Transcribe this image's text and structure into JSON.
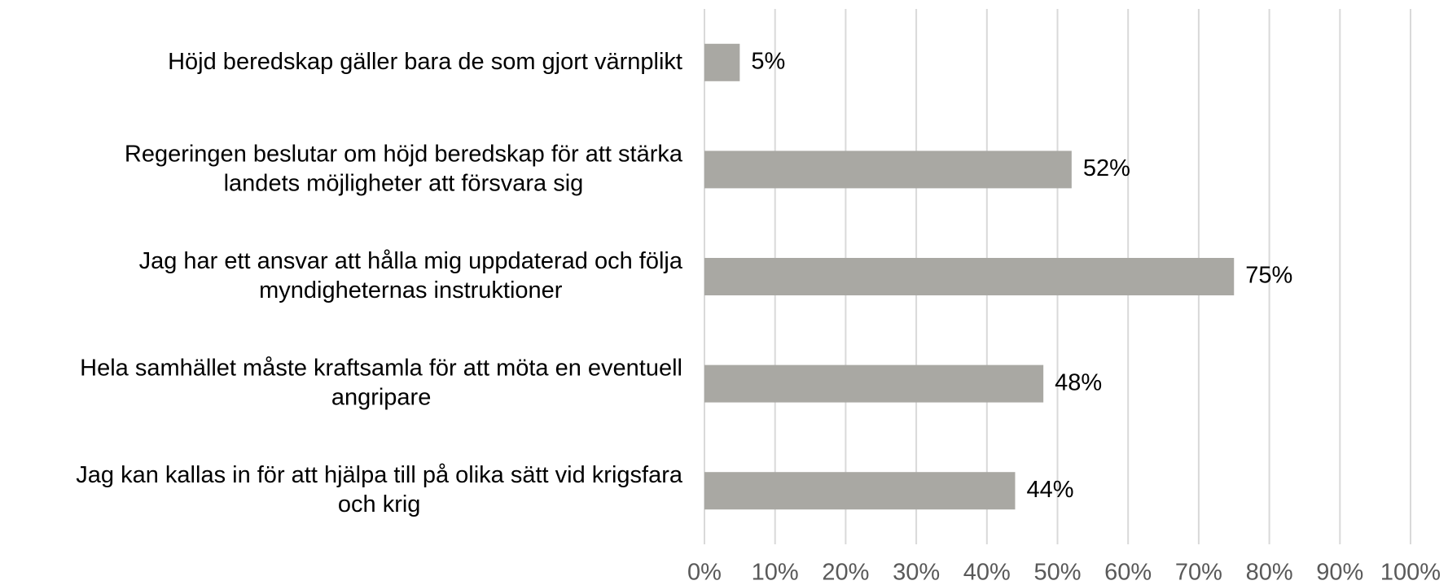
{
  "chart_data": {
    "type": "bar",
    "orientation": "horizontal",
    "categories": [
      [
        "Höjd beredskap gäller bara de som gjort värnplikt"
      ],
      [
        "Regeringen beslutar om höjd beredskap för att stärka",
        "landets möjligheter att försvara sig"
      ],
      [
        "Jag har ett ansvar att hålla mig uppdaterad och följa",
        "myndigheternas instruktioner"
      ],
      [
        "Hela samhället måste kraftsamla för att möta en eventuell",
        "angripare"
      ],
      [
        "Jag kan kallas in för att hjälpa till på olika sätt vid krigsfara",
        "och krig"
      ]
    ],
    "values": [
      5,
      52,
      75,
      48,
      44
    ],
    "value_labels": [
      "5%",
      "52%",
      "75%",
      "48%",
      "44%"
    ],
    "color": "#a9a8a3",
    "xlim": [
      0,
      100
    ],
    "xticks": [
      {
        "value": 0,
        "label": "0%"
      },
      {
        "value": 10,
        "label": "10%"
      },
      {
        "value": 20,
        "label": "20%"
      },
      {
        "value": 30,
        "label": "30%"
      },
      {
        "value": 40,
        "label": "40%"
      },
      {
        "value": 50,
        "label": "50%"
      },
      {
        "value": 60,
        "label": "60%"
      },
      {
        "value": 70,
        "label": "70%"
      },
      {
        "value": 80,
        "label": "80%"
      },
      {
        "value": 90,
        "label": "90%"
      },
      {
        "value": 100,
        "label": "100%"
      }
    ],
    "grid": true
  }
}
